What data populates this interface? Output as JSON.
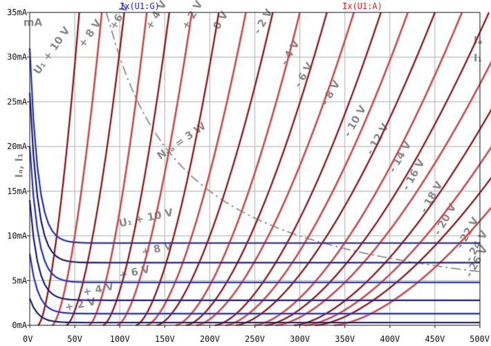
{
  "chart_data": {
    "type": "line",
    "title": "",
    "xlabel": "",
    "ylabel": "",
    "xlim": [
      0,
      500
    ],
    "ylim": [
      0,
      35
    ],
    "x_unit": "V",
    "y_unit": "mA",
    "x_ticks": [
      "0V",
      "50V",
      "100V",
      "150V",
      "200V",
      "250V",
      "300V",
      "350V",
      "400V",
      "450V",
      "500V"
    ],
    "y_ticks": [
      "0mA",
      "5mA",
      "10mA",
      "15mA",
      "20mA",
      "25mA",
      "30mA",
      "35mA"
    ],
    "grid": true,
    "legend": [
      {
        "name": "Ix(U1:G)",
        "color": "#2222cc",
        "position": "top-left"
      },
      {
        "name": "Ix(U1:A)",
        "color": "#dd2222",
        "position": "top-right"
      }
    ],
    "anode_series": [
      {
        "x_at_10mA": 30,
        "x_at_35mA": 55
      },
      {
        "x_at_10mA": 50,
        "x_at_35mA": 80
      },
      {
        "x_at_10mA": 70,
        "x_at_35mA": 105
      },
      {
        "x_at_10mA": 95,
        "x_at_35mA": 130
      },
      {
        "x_at_10mA": 115,
        "x_at_35mA": 155
      },
      {
        "x_at_10mA": 135,
        "x_at_35mA": 180
      },
      {
        "x_at_10mA": 160,
        "x_at_35mA": 210
      },
      {
        "x_at_10mA": 180,
        "x_at_35mA": 240
      },
      {
        "x_at_10mA": 200,
        "x_at_35mA": 270
      },
      {
        "x_at_10mA": 225,
        "x_at_35mA": 300
      },
      {
        "x_at_10mA": 245,
        "x_at_35mA": 330
      },
      {
        "x_at_10mA": 265,
        "x_at_35mA": 360
      },
      {
        "x_at_10mA": 290,
        "x_at_35mA": 390
      },
      {
        "x_at_10mA": 310,
        "x_at_35mA": 420
      },
      {
        "x_at_10mA": 330,
        "x_at_35mA": 450
      },
      {
        "x_at_10mA": 355,
        "x_at_35mA": 480
      },
      {
        "x_at_10mA": 375,
        "x_at_35mA": 510
      },
      {
        "x_at_10mA": 395,
        "x_at_35mA": 540
      },
      {
        "x_at_10mA": 420,
        "x_at_35mA": 570
      },
      {
        "x_at_10mA": 440,
        "x_at_35mA": 600
      },
      {
        "x_at_10mA": 460,
        "x_at_35mA": 630
      },
      {
        "x_at_10mA": 485,
        "x_at_35mA": 660
      }
    ],
    "grid_series": [
      {
        "start_mA": 31,
        "plateau_mA": 9.2
      },
      {
        "start_mA": 26,
        "plateau_mA": 7.0
      },
      {
        "start_mA": 20,
        "plateau_mA": 4.8
      },
      {
        "start_mA": 14,
        "plateau_mA": 2.8
      },
      {
        "start_mA": 8,
        "plateau_mA": 1.3
      },
      {
        "start_mA": 3,
        "plateau_mA": 0.3
      }
    ],
    "background_labels": [
      {
        "text": "U₁ + 10 V",
        "x": 10,
        "y": 28,
        "rot": -55
      },
      {
        "text": "+ 8 V",
        "x": 60,
        "y": 31,
        "rot": -55
      },
      {
        "text": "+6 V",
        "x": 95,
        "y": 33,
        "rot": -60
      },
      {
        "text": "+ 4 V",
        "x": 135,
        "y": 33,
        "rot": -60
      },
      {
        "text": "+ 2 V",
        "x": 175,
        "y": 33,
        "rot": -60
      },
      {
        "text": "0 V",
        "x": 210,
        "y": 33,
        "rot": -60
      },
      {
        "text": "- 2 V",
        "x": 255,
        "y": 32.5,
        "rot": -60
      },
      {
        "text": "- 4 V",
        "x": 285,
        "y": 29,
        "rot": -60
      },
      {
        "text": "- 6 V",
        "x": 300,
        "y": 26.5,
        "rot": -60
      },
      {
        "text": "- 8 V",
        "x": 330,
        "y": 24.5,
        "rot": -60
      },
      {
        "text": "- 10 V",
        "x": 355,
        "y": 21,
        "rot": -60
      },
      {
        "text": "- 12 V",
        "x": 380,
        "y": 19,
        "rot": -60
      },
      {
        "text": "- 14 V",
        "x": 405,
        "y": 17,
        "rot": -60
      },
      {
        "text": "- 16 V",
        "x": 420,
        "y": 15,
        "rot": -60
      },
      {
        "text": "- 18 V",
        "x": 440,
        "y": 12.5,
        "rot": -60
      },
      {
        "text": "- 20 V",
        "x": 455,
        "y": 10,
        "rot": -60
      },
      {
        "text": "- 22 V",
        "x": 480,
        "y": 8.5,
        "rot": -60
      },
      {
        "text": "- 24 V",
        "x": 490,
        "y": 7,
        "rot": -60
      },
      {
        "text": "- 26 V",
        "x": 490,
        "y": 5.3,
        "rot": -60
      },
      {
        "text": "Nᵤₐ = 3 W",
        "x": 145,
        "y": 18.5,
        "rot": -35
      },
      {
        "text": "U₁ + 10 V",
        "x": 100,
        "y": 11,
        "rot": -12
      },
      {
        "text": "+ 8 V",
        "x": 125,
        "y": 7.8,
        "rot": -12
      },
      {
        "text": "+ 6 V",
        "x": 100,
        "y": 5.2,
        "rot": -12
      },
      {
        "text": "+ 4 V",
        "x": 60,
        "y": 3.3,
        "rot": -12
      },
      {
        "text": "+ 2 V",
        "x": 40,
        "y": 1.6,
        "rot": -12
      },
      {
        "text": "mA",
        "x": -7,
        "y": 33.5,
        "rot": 0
      },
      {
        "text": "Iₐ, I₁",
        "x": -8,
        "y": 16.5,
        "rot": -90
      },
      {
        "text": "Iₐ",
        "x": 493,
        "y": 31.5,
        "rot": 0
      },
      {
        "text": "I₁",
        "x": 493,
        "y": 29.5,
        "rot": 0
      }
    ]
  }
}
